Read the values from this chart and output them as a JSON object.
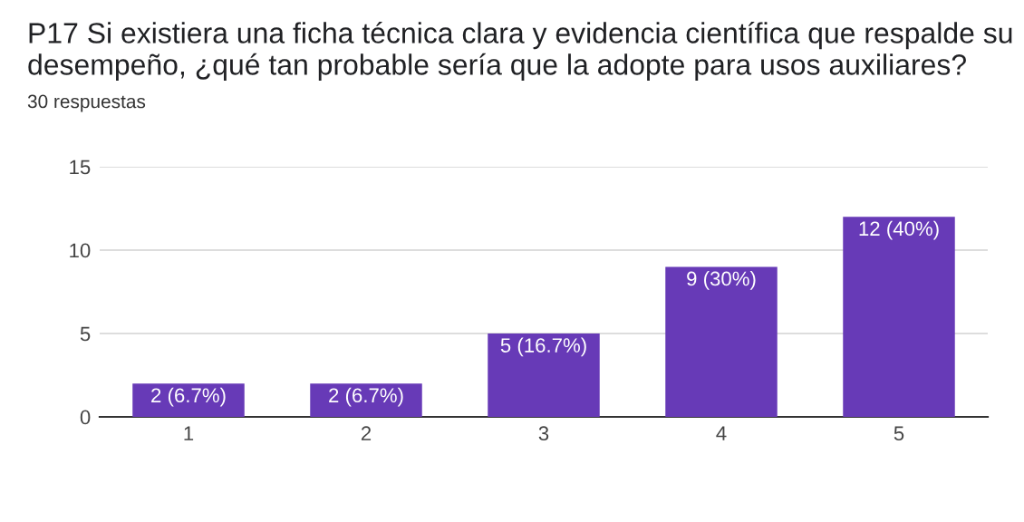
{
  "chart_data": {
    "type": "bar",
    "title": "P17 Si existiera una ficha técnica clara y evidencia científica que respalde su desempeño, ¿qué tan probable sería que la adopte para usos auxiliares?",
    "subtitle": "30 respuestas",
    "categories": [
      "1",
      "2",
      "3",
      "4",
      "5"
    ],
    "values": [
      2,
      2,
      5,
      9,
      12
    ],
    "value_labels": [
      "2 (6.7%)",
      "2 (6.7%)",
      "5 (16.7%)",
      "9 (30%)",
      "12 (40%)"
    ],
    "color": "#673ab7",
    "ylim": [
      0,
      15
    ],
    "yticks": [
      0,
      5,
      10,
      15
    ],
    "grid": "y"
  }
}
